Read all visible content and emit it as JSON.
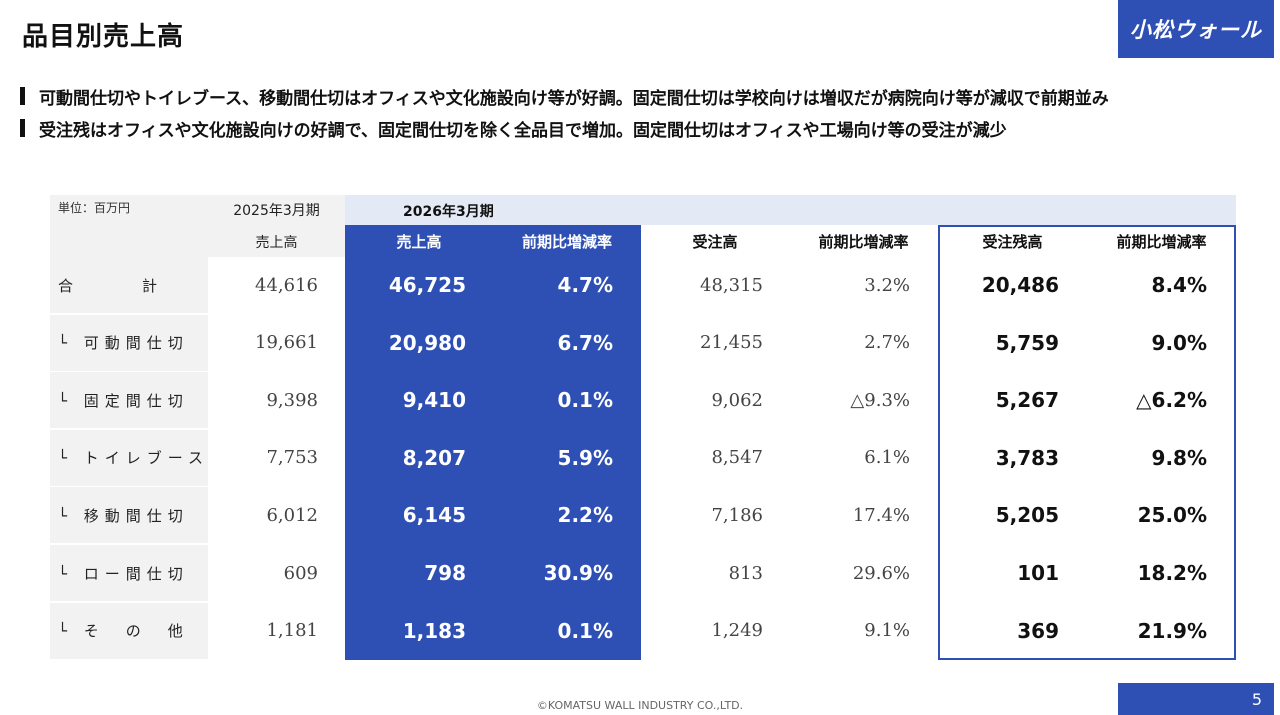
{
  "title": "品目別売上高",
  "logo": "小松ウォール",
  "bullets": [
    "可動間仕切やトイレブース、移動間仕切はオフィスや文化施設向け等が好調。固定間仕切は学校向けは増収だが病院向け等が減収で前期並み",
    "受注残はオフィスや文化施設向けの好調で、固定間仕切を除く全品目で増加。固定間仕切はオフィスや工場向け等の受注が減少"
  ],
  "table": {
    "unit": "単位：百万円",
    "prev_period": "2025年3月期",
    "prev_col": "売上高",
    "current_period": "2026年3月期",
    "headers": [
      "売上高",
      "前期比増減率",
      "受注高",
      "前期比増減率",
      "受注残高",
      "前期比増減率"
    ],
    "rows": [
      {
        "label": "合　　　計",
        "prev_sales": "44,616",
        "sales": "46,725",
        "sales_rate": "4.7%",
        "orders": "48,315",
        "orders_rate": "3.2%",
        "backlog": "20,486",
        "backlog_rate": "8.4%"
      },
      {
        "label": "└ 可動間仕切",
        "prev_sales": "19,661",
        "sales": "20,980",
        "sales_rate": "6.7%",
        "orders": "21,455",
        "orders_rate": "2.7%",
        "backlog": "5,759",
        "backlog_rate": "9.0%"
      },
      {
        "label": "└ 固定間仕切",
        "prev_sales": "9,398",
        "sales": "9,410",
        "sales_rate": "0.1%",
        "orders": "9,062",
        "orders_rate": "△9.3%",
        "backlog": "5,267",
        "backlog_rate": "△6.2%"
      },
      {
        "label": "└ トイレブース",
        "prev_sales": "7,753",
        "sales": "8,207",
        "sales_rate": "5.9%",
        "orders": "8,547",
        "orders_rate": "6.1%",
        "backlog": "3,783",
        "backlog_rate": "9.8%"
      },
      {
        "label": "└ 移動間仕切",
        "prev_sales": "6,012",
        "sales": "6,145",
        "sales_rate": "2.2%",
        "orders": "7,186",
        "orders_rate": "17.4%",
        "backlog": "5,205",
        "backlog_rate": "25.0%"
      },
      {
        "label": "└ ロー間仕切",
        "prev_sales": "609",
        "sales": "798",
        "sales_rate": "30.9%",
        "orders": "813",
        "orders_rate": "29.6%",
        "backlog": "101",
        "backlog_rate": "18.2%"
      },
      {
        "label": "└ そ　の　他",
        "prev_sales": "1,181",
        "sales": "1,183",
        "sales_rate": "0.1%",
        "orders": "1,249",
        "orders_rate": "9.1%",
        "backlog": "369",
        "backlog_rate": "21.9%"
      }
    ]
  },
  "footer": "©KOMATSU WALL INDUSTRY CO.,LTD.",
  "page_number": "5",
  "colors": {
    "accent": "#2e4fb3",
    "band": "#e3e9f5",
    "label_bg": "#f2f2f2"
  }
}
